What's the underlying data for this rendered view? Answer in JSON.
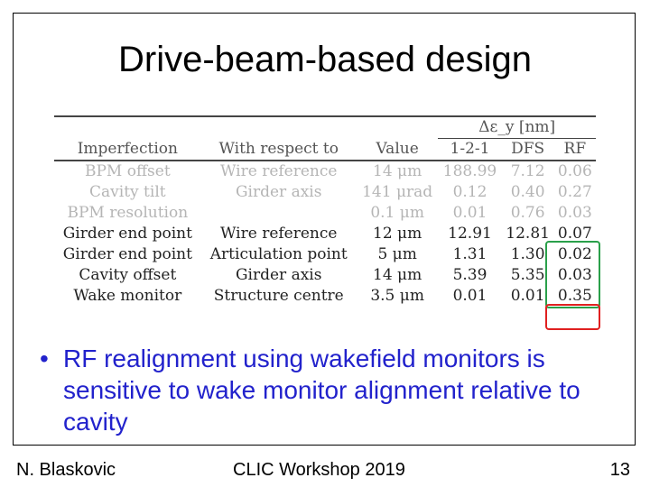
{
  "slide": {
    "title": "Drive-beam-based design",
    "table": {
      "group_header": "Δε_y [nm]",
      "columns": [
        "Imperfection",
        "With respect to",
        "Value",
        "1-2-1",
        "DFS",
        "RF"
      ],
      "rows": [
        {
          "imperfection": "BPM offset",
          "reference": "Wire reference",
          "value": "14 μm",
          "v121": "188.99",
          "dfs": "7.12",
          "rf": "0.06",
          "faded": true
        },
        {
          "imperfection": "Cavity tilt",
          "reference": "Girder axis",
          "value": "141 μrad",
          "v121": "0.12",
          "dfs": "0.40",
          "rf": "0.27",
          "faded": true
        },
        {
          "imperfection": "BPM resolution",
          "reference": "",
          "value": "0.1 μm",
          "v121": "0.01",
          "dfs": "0.76",
          "rf": "0.03",
          "faded": true
        },
        {
          "imperfection": "Girder end point",
          "reference": "Wire reference",
          "value": "12 μm",
          "v121": "12.91",
          "dfs": "12.81",
          "rf": "0.07",
          "faded": false
        },
        {
          "imperfection": "Girder end point",
          "reference": "Articulation point",
          "value": "5 μm",
          "v121": "1.31",
          "dfs": "1.30",
          "rf": "0.02",
          "faded": false
        },
        {
          "imperfection": "Cavity offset",
          "reference": "Girder axis",
          "value": "14 μm",
          "v121": "5.39",
          "dfs": "5.35",
          "rf": "0.03",
          "faded": false
        },
        {
          "imperfection": "Wake monitor",
          "reference": "Structure centre",
          "value": "3.5 μm",
          "v121": "0.01",
          "dfs": "0.01",
          "rf": "0.35",
          "faded": false
        }
      ]
    },
    "bullet": {
      "marker": "•",
      "text": "RF realignment using wakefield monitors is sensitive to wake monitor alignment relative to cavity"
    },
    "footer": {
      "author": "N. Blaskovic",
      "event": "CLIC Workshop 2019",
      "page": "13"
    },
    "colors": {
      "bullet_text": "#2222cc",
      "highlight_green": "#2aa04a",
      "highlight_red": "#e02020"
    }
  }
}
